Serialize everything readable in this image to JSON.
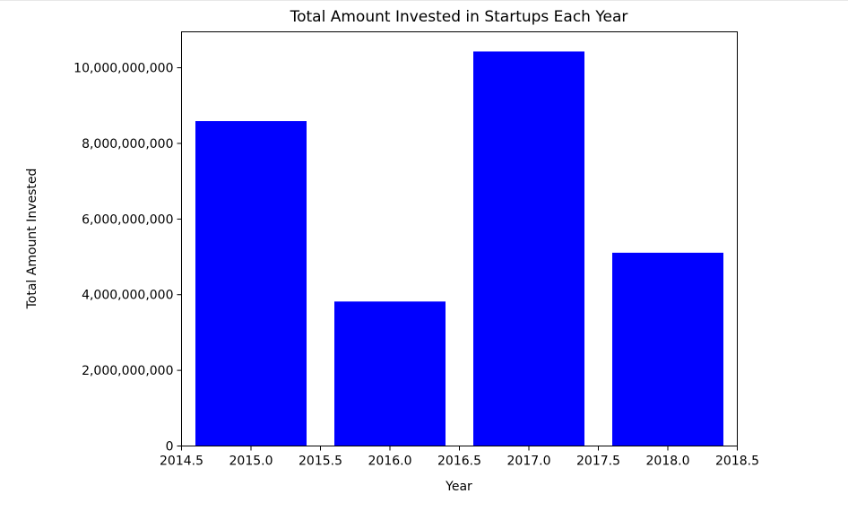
{
  "chart_data": {
    "type": "bar",
    "title": "Total Amount Invested in Startups Each Year",
    "xlabel": "Year",
    "ylabel": "Total Amount Invested",
    "categories": [
      "2015",
      "2016",
      "2017",
      "2018"
    ],
    "x": [
      2015,
      2016,
      2017,
      2018
    ],
    "values": [
      8590000000,
      3820000000,
      10430000000,
      5110000000
    ],
    "bar_width": 0.8,
    "xlim": [
      2014.5,
      2018.5
    ],
    "ylim": [
      0,
      10950000000
    ],
    "x_ticks": [
      2014.5,
      2015.0,
      2015.5,
      2016.0,
      2016.5,
      2017.0,
      2017.5,
      2018.0,
      2018.5
    ],
    "x_tick_labels": [
      "2014.5",
      "2015.0",
      "2015.5",
      "2016.0",
      "2016.5",
      "2017.0",
      "2017.5",
      "2018.0",
      "2018.5"
    ],
    "y_ticks": [
      0,
      2000000000,
      4000000000,
      6000000000,
      8000000000,
      10000000000
    ],
    "y_tick_labels": [
      "0",
      "2,000,000,000",
      "4,000,000,000",
      "6,000,000,000",
      "8,000,000,000",
      "10,000,000,000"
    ],
    "bar_color": "#0000ff",
    "grid": false,
    "legend": "none"
  }
}
